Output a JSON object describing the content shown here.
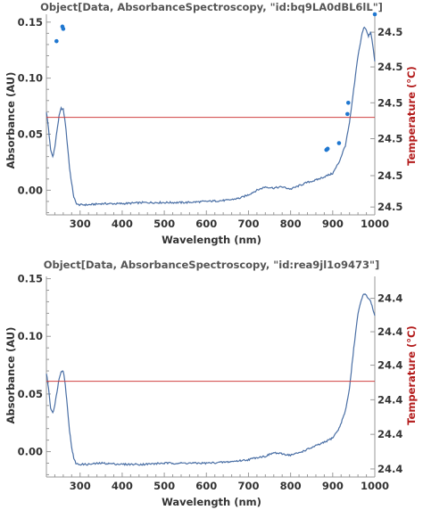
{
  "chart_data": [
    {
      "type": "line",
      "title": "Object[Data, AbsorbanceSpectroscopy, \"id:bq9LA0dBL6lL\"]",
      "xlabel": "Wavelength (nm)",
      "ylabel": "Absorbance (AU)",
      "y2label": "Temperature (°C)",
      "xlim": [
        220,
        1000
      ],
      "ylim": [
        -0.022,
        0.157
      ],
      "xticks": [
        300,
        400,
        500,
        600,
        700,
        800,
        900,
        1000
      ],
      "yticks": [
        0.0,
        0.05,
        0.1,
        0.15
      ],
      "ytick_labels": [
        "0.00",
        "0.05",
        "0.10",
        "0.15"
      ],
      "y2ticks": [
        -0.015,
        0.013,
        0.046,
        0.078,
        0.11,
        0.141
      ],
      "y2tick_labels": [
        "24.5",
        "24.5",
        "24.5",
        "24.5",
        "24.5",
        "24.5"
      ],
      "colors": {
        "absorbance": "#4a6fa5",
        "temperature_line": "#d04040",
        "temperature_points": "#1f77d0"
      },
      "absorbance": {
        "x": [
          220,
          225,
          230,
          235,
          240,
          245,
          250,
          255,
          260,
          265,
          270,
          275,
          280,
          285,
          290,
          295,
          300,
          320,
          350,
          400,
          450,
          500,
          550,
          600,
          650,
          680,
          700,
          720,
          740,
          760,
          780,
          800,
          820,
          840,
          860,
          880,
          900,
          915,
          930,
          940,
          950,
          960,
          970,
          975,
          980,
          985,
          990,
          995,
          1000
        ],
        "y": [
          0.07,
          0.055,
          0.036,
          0.03,
          0.038,
          0.053,
          0.066,
          0.073,
          0.072,
          0.06,
          0.04,
          0.02,
          0.006,
          -0.006,
          -0.011,
          -0.013,
          -0.013,
          -0.013,
          -0.012,
          -0.012,
          -0.011,
          -0.011,
          -0.011,
          -0.01,
          -0.009,
          -0.007,
          -0.004,
          0.0,
          0.003,
          0.002,
          0.003,
          0.001,
          0.004,
          0.007,
          0.009,
          0.012,
          0.015,
          0.025,
          0.04,
          0.06,
          0.09,
          0.12,
          0.14,
          0.146,
          0.143,
          0.137,
          0.141,
          0.13,
          0.115
        ]
      },
      "temperature_line": {
        "y": 0.065
      },
      "temperature_points": {
        "x": [
          244,
          258,
          260,
          885,
          888,
          915,
          935,
          937,
          1000
        ],
        "y": [
          0.133,
          0.146,
          0.144,
          0.036,
          0.037,
          0.042,
          0.068,
          0.078,
          0.157
        ]
      }
    },
    {
      "type": "line",
      "title": "Object[Data, AbsorbanceSpectroscopy, \"id:rea9jl1o9473\"]",
      "xlabel": "Wavelength (nm)",
      "ylabel": "Absorbance (AU)",
      "y2label": "Temperature (°C)",
      "xlim": [
        220,
        1000
      ],
      "ylim": [
        -0.022,
        0.152
      ],
      "xticks": [
        300,
        400,
        500,
        600,
        700,
        800,
        900,
        1000
      ],
      "yticks": [
        0.0,
        0.05,
        0.1,
        0.15
      ],
      "ytick_labels": [
        "0.00",
        "0.05",
        "0.10",
        "0.15"
      ],
      "y2ticks": [
        -0.015,
        0.015,
        0.045,
        0.075,
        0.104,
        0.133
      ],
      "y2tick_labels": [
        "24.4",
        "24.4",
        "24.4",
        "24.4",
        "24.4",
        "24.4"
      ],
      "colors": {
        "absorbance": "#4a6fa5",
        "temperature_line": "#d04040"
      },
      "absorbance": {
        "x": [
          220,
          225,
          230,
          235,
          240,
          245,
          250,
          255,
          260,
          265,
          270,
          275,
          280,
          285,
          290,
          295,
          300,
          320,
          350,
          400,
          450,
          500,
          550,
          600,
          650,
          700,
          720,
          740,
          760,
          780,
          800,
          820,
          840,
          860,
          880,
          900,
          915,
          930,
          940,
          950,
          960,
          970,
          975,
          980,
          985,
          990,
          995,
          1000
        ],
        "y": [
          0.068,
          0.055,
          0.038,
          0.034,
          0.04,
          0.052,
          0.063,
          0.07,
          0.07,
          0.058,
          0.038,
          0.018,
          0.004,
          -0.006,
          -0.01,
          -0.011,
          -0.011,
          -0.011,
          -0.01,
          -0.011,
          -0.011,
          -0.01,
          -0.01,
          -0.01,
          -0.009,
          -0.007,
          -0.005,
          -0.004,
          -0.001,
          -0.002,
          -0.003,
          -0.001,
          0.002,
          0.005,
          0.008,
          0.012,
          0.02,
          0.035,
          0.055,
          0.09,
          0.12,
          0.134,
          0.137,
          0.135,
          0.133,
          0.13,
          0.124,
          0.118
        ]
      },
      "temperature_line": {
        "y": 0.061
      }
    }
  ]
}
